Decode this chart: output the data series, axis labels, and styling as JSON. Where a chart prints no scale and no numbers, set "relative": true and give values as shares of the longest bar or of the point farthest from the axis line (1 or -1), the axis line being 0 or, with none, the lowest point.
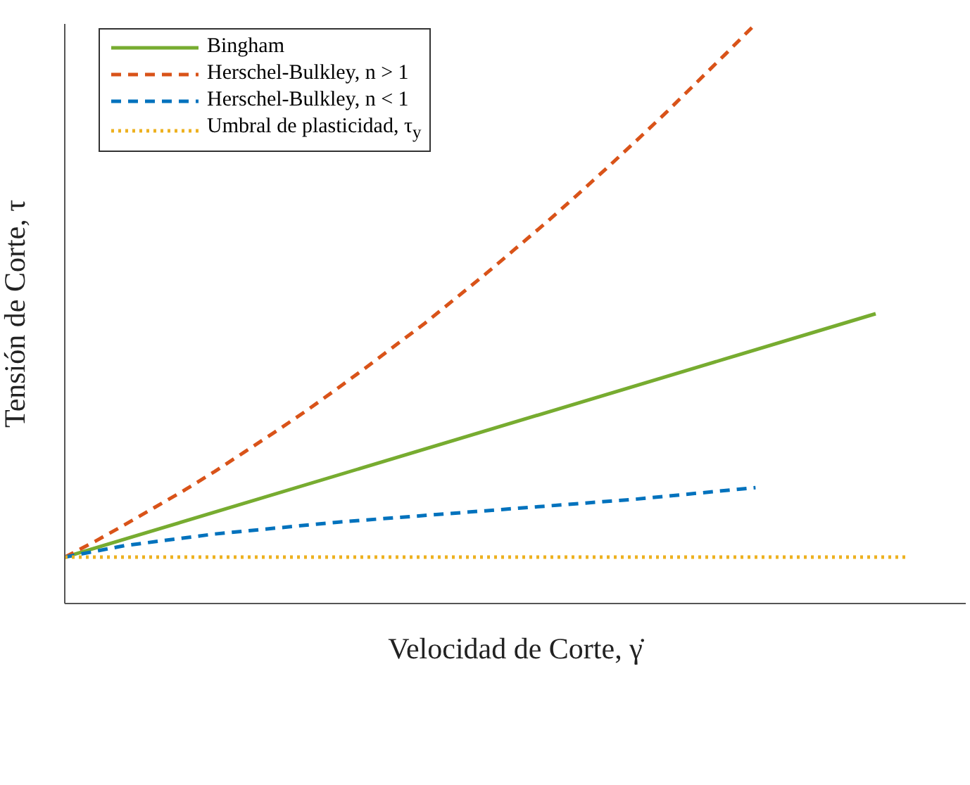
{
  "chart_data": {
    "type": "line",
    "relative": true,
    "xlabel": "Velocidad de Corte, γ̇",
    "ylabel": "Tensión de Corte, τ",
    "categories": [
      null,
      null,
      null,
      null,
      null,
      null,
      null,
      null,
      null,
      null,
      null,
      null,
      null,
      null,
      null,
      null,
      null,
      null,
      null,
      null,
      null,
      null,
      null,
      null,
      null,
      null,
      null,
      null,
      null,
      null,
      null
    ],
    "series": [
      {
        "name": "Bingham",
        "color": "#77ac30",
        "line_style": "solid",
        "values": [
          0.08,
          null,
          null,
          null,
          null,
          null,
          null,
          null,
          null,
          null,
          null,
          null,
          null,
          null,
          null,
          null,
          null,
          null,
          null,
          null,
          null,
          null,
          null,
          null,
          null,
          null,
          null,
          0.5,
          null,
          null,
          null
        ]
      },
      {
        "name": "Herschel-Bulkley, n > 1",
        "color": "#d95319",
        "line_style": "dashed",
        "values": [
          0.08,
          0.107,
          0.136,
          0.166,
          0.196,
          0.228,
          0.262,
          0.296,
          0.331,
          0.368,
          0.406,
          0.445,
          0.484,
          0.526,
          0.568,
          0.612,
          0.656,
          0.702,
          0.749,
          0.797,
          0.846,
          0.897,
          0.948,
          1.0,
          null,
          null,
          null,
          null,
          null,
          null,
          null
        ]
      },
      {
        "name": "Herschel-Bulkley, n < 1",
        "color": "#0072bd",
        "line_style": "dashed",
        "values": [
          0.08,
          null,
          0.1,
          null,
          null,
          0.12,
          null,
          null,
          null,
          0.14,
          null,
          null,
          null,
          null,
          0.16,
          null,
          null,
          null,
          null,
          0.18,
          null,
          null,
          null,
          0.2,
          null,
          null,
          null,
          null,
          null,
          null,
          null
        ]
      },
      {
        "name": "Umbral de plasticidad, τ$_{y}$",
        "color": "#edb120",
        "line_style": "dotted",
        "values": [
          0.08,
          null,
          null,
          null,
          null,
          null,
          null,
          null,
          null,
          null,
          null,
          null,
          null,
          null,
          null,
          null,
          null,
          null,
          null,
          null,
          null,
          null,
          null,
          null,
          null,
          null,
          null,
          null,
          0.08,
          null,
          null
        ]
      }
    ],
    "legend": "top left",
    "grid": false,
    "marker": "none"
  }
}
